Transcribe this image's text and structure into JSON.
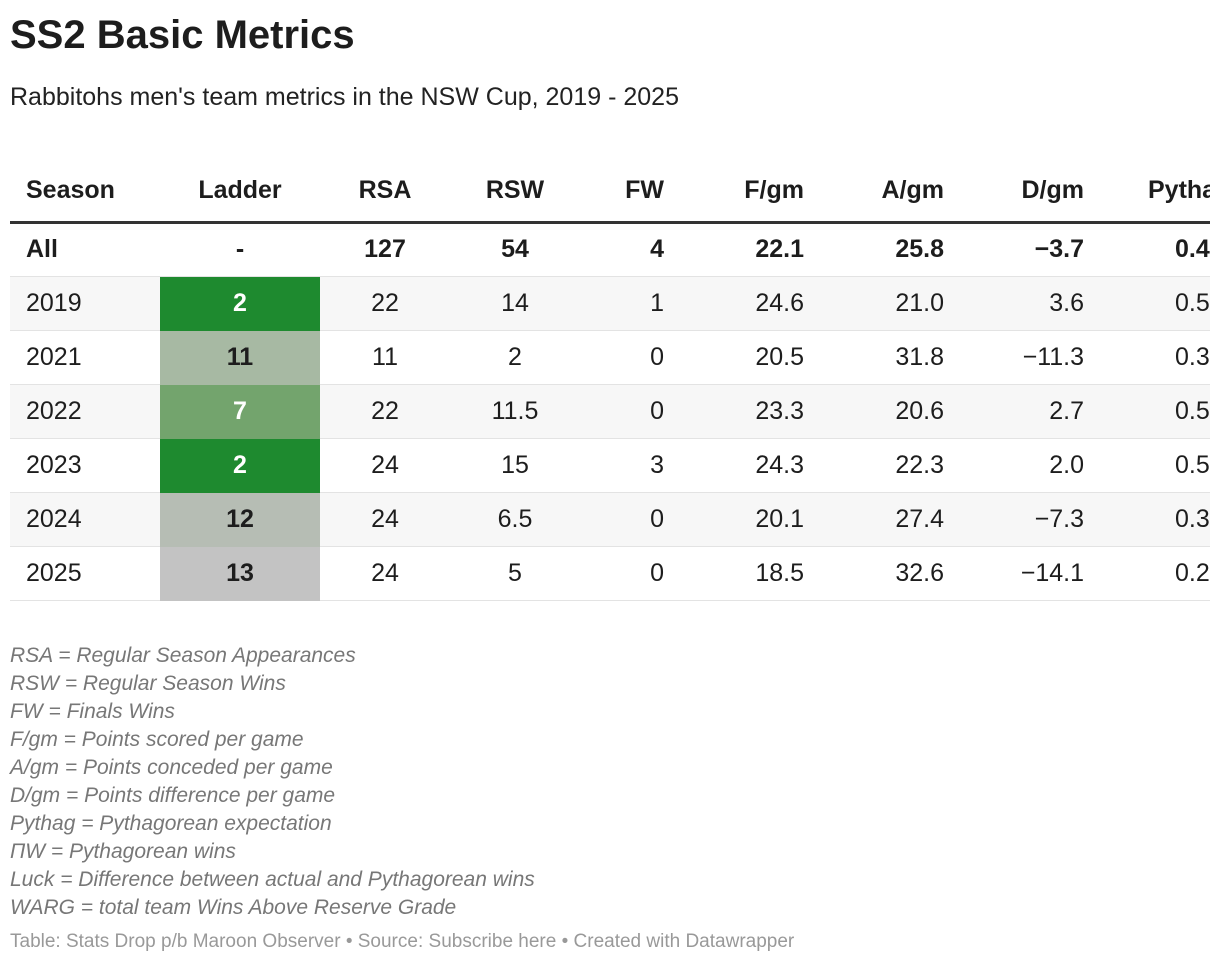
{
  "header": {
    "title": "SS2 Basic Metrics",
    "subtitle": "Rabbitohs men's team metrics in the NSW Cup, 2019 - 2025"
  },
  "table": {
    "columns": [
      "Season",
      "Ladder",
      "RSA",
      "RSW",
      "FW",
      "F/gm",
      "A/gm",
      "D/gm",
      "Pytha"
    ],
    "rows": [
      [
        "All",
        "-",
        "127",
        "54",
        "4",
        "22.1",
        "25.8",
        "−3.7",
        "0.4"
      ],
      [
        "2019",
        "2",
        "22",
        "14",
        "1",
        "24.6",
        "21.0",
        "3.6",
        "0.5"
      ],
      [
        "2021",
        "11",
        "11",
        "2",
        "0",
        "20.5",
        "31.8",
        "−11.3",
        "0.3"
      ],
      [
        "2022",
        "7",
        "22",
        "11.5",
        "0",
        "23.3",
        "20.6",
        "2.7",
        "0.5"
      ],
      [
        "2023",
        "2",
        "24",
        "15",
        "3",
        "24.3",
        "22.3",
        "2.0",
        "0.5"
      ],
      [
        "2024",
        "12",
        "24",
        "6.5",
        "0",
        "20.1",
        "27.4",
        "−7.3",
        "0.3"
      ],
      [
        "2025",
        "13",
        "24",
        "5",
        "0",
        "18.5",
        "32.6",
        "−14.1",
        "0.2"
      ]
    ],
    "ladder_colors": [
      null,
      "#1e8a2f",
      "#a7b9a3",
      "#73a46d",
      "#1e8a2f",
      "#b6bdb4",
      "#c3c3c3"
    ]
  },
  "notes": [
    "RSA = Regular Season Appearances",
    "RSW = Regular Season Wins",
    "FW = Finals Wins",
    "F/gm = Points scored per game",
    "A/gm = Points conceded per game",
    "D/gm = Points difference per game",
    "Pythag = Pythagorean expectation",
    "ΠW = Pythagorean wins",
    "Luck = Difference between actual and Pythagorean wins",
    "WARG = total team Wins Above Reserve Grade"
  ],
  "footer": {
    "prefix": "Table: Stats Drop p/b Maroon Observer • Source: ",
    "link": "Subscribe here",
    "suffix": " • Created with Datawrapper"
  }
}
